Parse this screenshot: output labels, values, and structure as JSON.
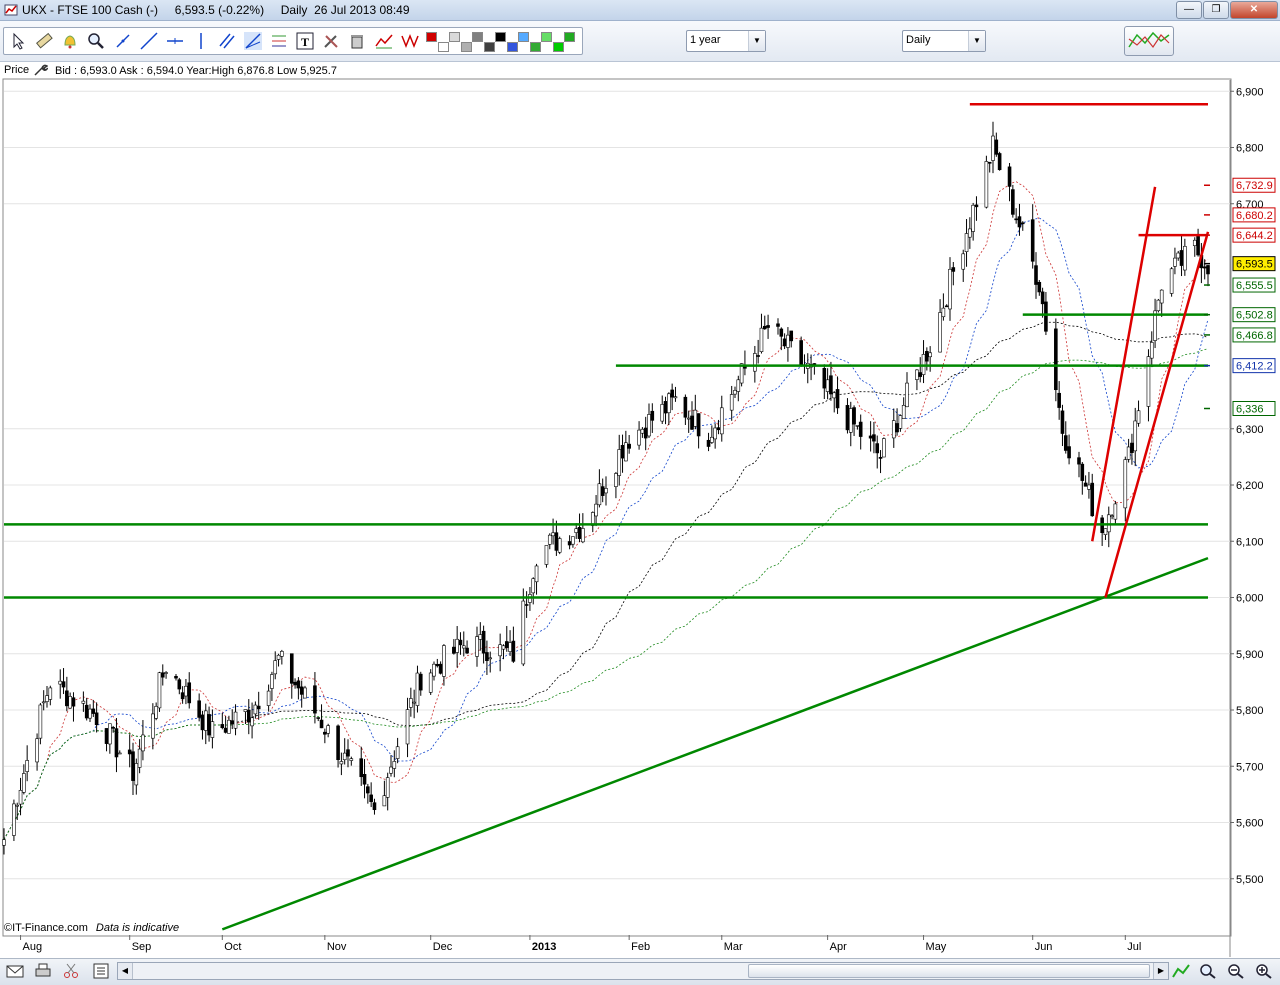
{
  "window": {
    "title": "UKX - FTSE 100 Cash (-)     6,593.5 (-0.22%)     Daily  26 Jul 2013 08:49",
    "minimize_label": "—",
    "maximize_label": "❐",
    "close_label": "✕"
  },
  "toolbar": {
    "period_select": "1 year",
    "interval_select": "Daily",
    "color_swatches": [
      "#d00000",
      "#ffffff",
      "#d9d9d9",
      "#b0b0b0",
      "#808080",
      "#404040",
      "#000000",
      "#3355dd",
      "#55aaff",
      "#33aa33",
      "#66dd66",
      "#00cc00",
      "#22aa22"
    ]
  },
  "infobar": {
    "price_label": "Price",
    "quote": "Bid : 6,593.0  Ask : 6,594.0  Year:High 6,876.8  Low 5,925.7"
  },
  "chart_data": {
    "type": "candlestick",
    "title": "",
    "ylim": [
      5400,
      6920
    ],
    "y_ticks": [
      {
        "value": 6900,
        "label": "6,900"
      },
      {
        "value": 6800,
        "label": "6,800"
      },
      {
        "value": 6700,
        "label": "6,700"
      },
      {
        "value": 6300,
        "label": "6,300"
      },
      {
        "value": 6200,
        "label": "6,200"
      },
      {
        "value": 6100,
        "label": "6,100"
      },
      {
        "value": 6000,
        "label": "6,000"
      },
      {
        "value": 5900,
        "label": "5,900"
      },
      {
        "value": 5800,
        "label": "5,800"
      },
      {
        "value": 5700,
        "label": "5,700"
      },
      {
        "value": 5600,
        "label": "5,600"
      },
      {
        "value": 5500,
        "label": "5,500"
      }
    ],
    "price_tags": [
      {
        "value": 6732.9,
        "label": "6,732.9",
        "color": "#cc0000"
      },
      {
        "value": 6680.2,
        "label": "6,680.2",
        "color": "#cc0000"
      },
      {
        "value": 6644.2,
        "label": "6,644.2",
        "color": "#cc0000"
      },
      {
        "value": 6593.5,
        "label": "6,593.5",
        "color": "#000000",
        "highlight": "#ffee00"
      },
      {
        "value": 6555.5,
        "label": "6,555.5",
        "color": "#006600"
      },
      {
        "value": 6502.8,
        "label": "6,502.8",
        "color": "#006600"
      },
      {
        "value": 6466.8,
        "label": "6,466.8",
        "color": "#006600"
      },
      {
        "value": 6412.2,
        "label": "6,412.2",
        "color": "#1133aa"
      },
      {
        "value": 6336,
        "label": "6,336",
        "color": "#006600"
      }
    ],
    "x_labels": [
      "Aug",
      "Sep",
      "Oct",
      "Nov",
      "Dec",
      "2013",
      "Feb",
      "Mar",
      "Apr",
      "May",
      "Jun",
      "Jul"
    ],
    "x_start": "2012-07-27",
    "x_end": "2013-07-26",
    "close_keypoints": [
      [
        "2012-07-27",
        5570
      ],
      [
        "2012-08-10",
        5850
      ],
      [
        "2012-08-24",
        5790
      ],
      [
        "2012-09-04",
        5690
      ],
      [
        "2012-09-14",
        5880
      ],
      [
        "2012-09-28",
        5760
      ],
      [
        "2012-10-10",
        5800
      ],
      [
        "2012-10-18",
        5890
      ],
      [
        "2012-10-31",
        5780
      ],
      [
        "2012-11-16",
        5620
      ],
      [
        "2012-11-30",
        5860
      ],
      [
        "2012-12-14",
        5920
      ],
      [
        "2012-12-28",
        5900
      ],
      [
        "2013-01-04",
        6080
      ],
      [
        "2013-01-18",
        6130
      ],
      [
        "2013-01-31",
        6280
      ],
      [
        "2013-02-15",
        6350
      ],
      [
        "2013-02-25",
        6290
      ],
      [
        "2013-03-15",
        6480
      ],
      [
        "2013-03-28",
        6400
      ],
      [
        "2013-04-05",
        6340
      ],
      [
        "2013-04-18",
        6250
      ],
      [
        "2013-05-03",
        6450
      ],
      [
        "2013-05-22",
        6800
      ],
      [
        "2013-06-05",
        6560
      ],
      [
        "2013-06-12",
        6300
      ],
      [
        "2013-06-24",
        6120
      ],
      [
        "2013-07-02",
        6250
      ],
      [
        "2013-07-12",
        6560
      ],
      [
        "2013-07-22",
        6620
      ],
      [
        "2013-07-26",
        6593.5
      ]
    ],
    "horizontal_lines": [
      {
        "price": 6876.8,
        "color": "#dd0000",
        "from": "2013-05-15",
        "to": "2013-07-26"
      },
      {
        "price": 6644.2,
        "color": "#dd0000",
        "from": "2013-07-05",
        "to": "2013-07-26"
      },
      {
        "price": 6502.8,
        "color": "#008800",
        "from": "2013-05-31",
        "to": "2013-07-26"
      },
      {
        "price": 6412.2,
        "color": "#008800",
        "from": "2013-01-28",
        "to": "2013-07-26"
      },
      {
        "price": 6130,
        "color": "#008800",
        "from": "2012-07-27",
        "to": "2013-07-26"
      },
      {
        "price": 6000,
        "color": "#008800",
        "from": "2012-07-27",
        "to": "2013-07-26"
      }
    ],
    "trend_lines": [
      {
        "color": "#008800",
        "from": [
          "2012-10-01",
          5410
        ],
        "to": [
          "2013-07-26",
          6070
        ]
      },
      {
        "color": "#dd0000",
        "from": [
          "2013-06-21",
          6100
        ],
        "to": [
          "2013-07-10",
          6730
        ]
      },
      {
        "color": "#dd0000",
        "from": [
          "2013-06-25",
          6000
        ],
        "to": [
          "2013-07-26",
          6650
        ]
      }
    ]
  },
  "watermark": {
    "copyright": "©IT-Finance.com",
    "note": "Data is indicative"
  },
  "statusbar": {
    "scroll_left": "◀",
    "scroll_right": "▶"
  }
}
